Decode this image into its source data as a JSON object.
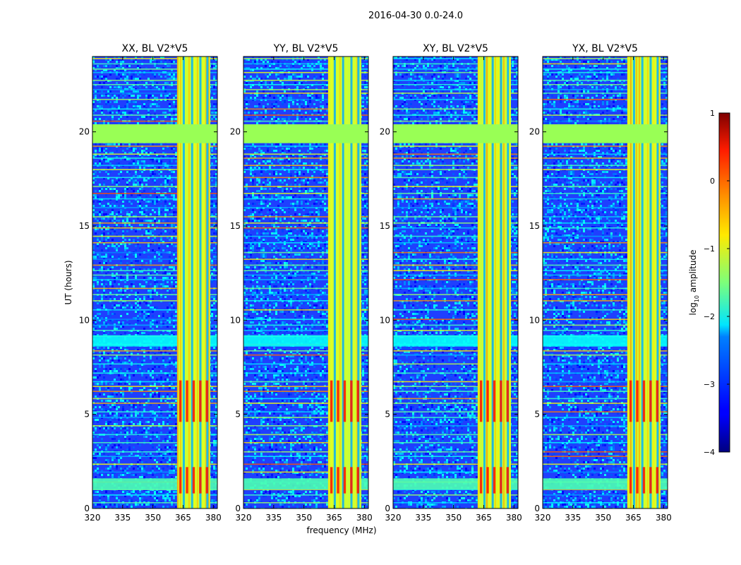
{
  "figure": {
    "suptitle": "2016-04-30 0.0-24.0",
    "xlabel": "frequency (MHz)",
    "ylabel": "UT (hours)"
  },
  "chart_data": {
    "type": "heatmap",
    "xlim": [
      320,
      382
    ],
    "ylim": [
      0,
      24
    ],
    "x_ticks": [
      320,
      335,
      350,
      365,
      380
    ],
    "y_ticks": [
      0,
      5,
      10,
      15,
      20
    ],
    "colorscale": "jet",
    "colorbar": {
      "label_prefix": "log",
      "label_sub": "10",
      "label_suffix": " amplitude",
      "min": -4,
      "max": 1,
      "ticks": [
        1,
        0,
        -1,
        -2,
        -3,
        -4
      ],
      "tick_labels": [
        "1",
        "0",
        "−1",
        "−2",
        "−3",
        "−4"
      ]
    },
    "flagged_band": {
      "y_range": [
        19.4,
        20.4
      ],
      "color": "#99ff55"
    },
    "rfi_columns_mhz": [
      {
        "range": [
          362,
          382
        ],
        "level": 0.58
      }
    ],
    "panels": [
      {
        "title": "XX, BL V2*V5"
      },
      {
        "title": "YY, BL V2*V5"
      },
      {
        "title": "XY, BL V2*V5"
      },
      {
        "title": "YX, BL V2*V5"
      }
    ]
  },
  "colors": {
    "background_noise": "#1f3fff",
    "flag": "#99ff55"
  }
}
